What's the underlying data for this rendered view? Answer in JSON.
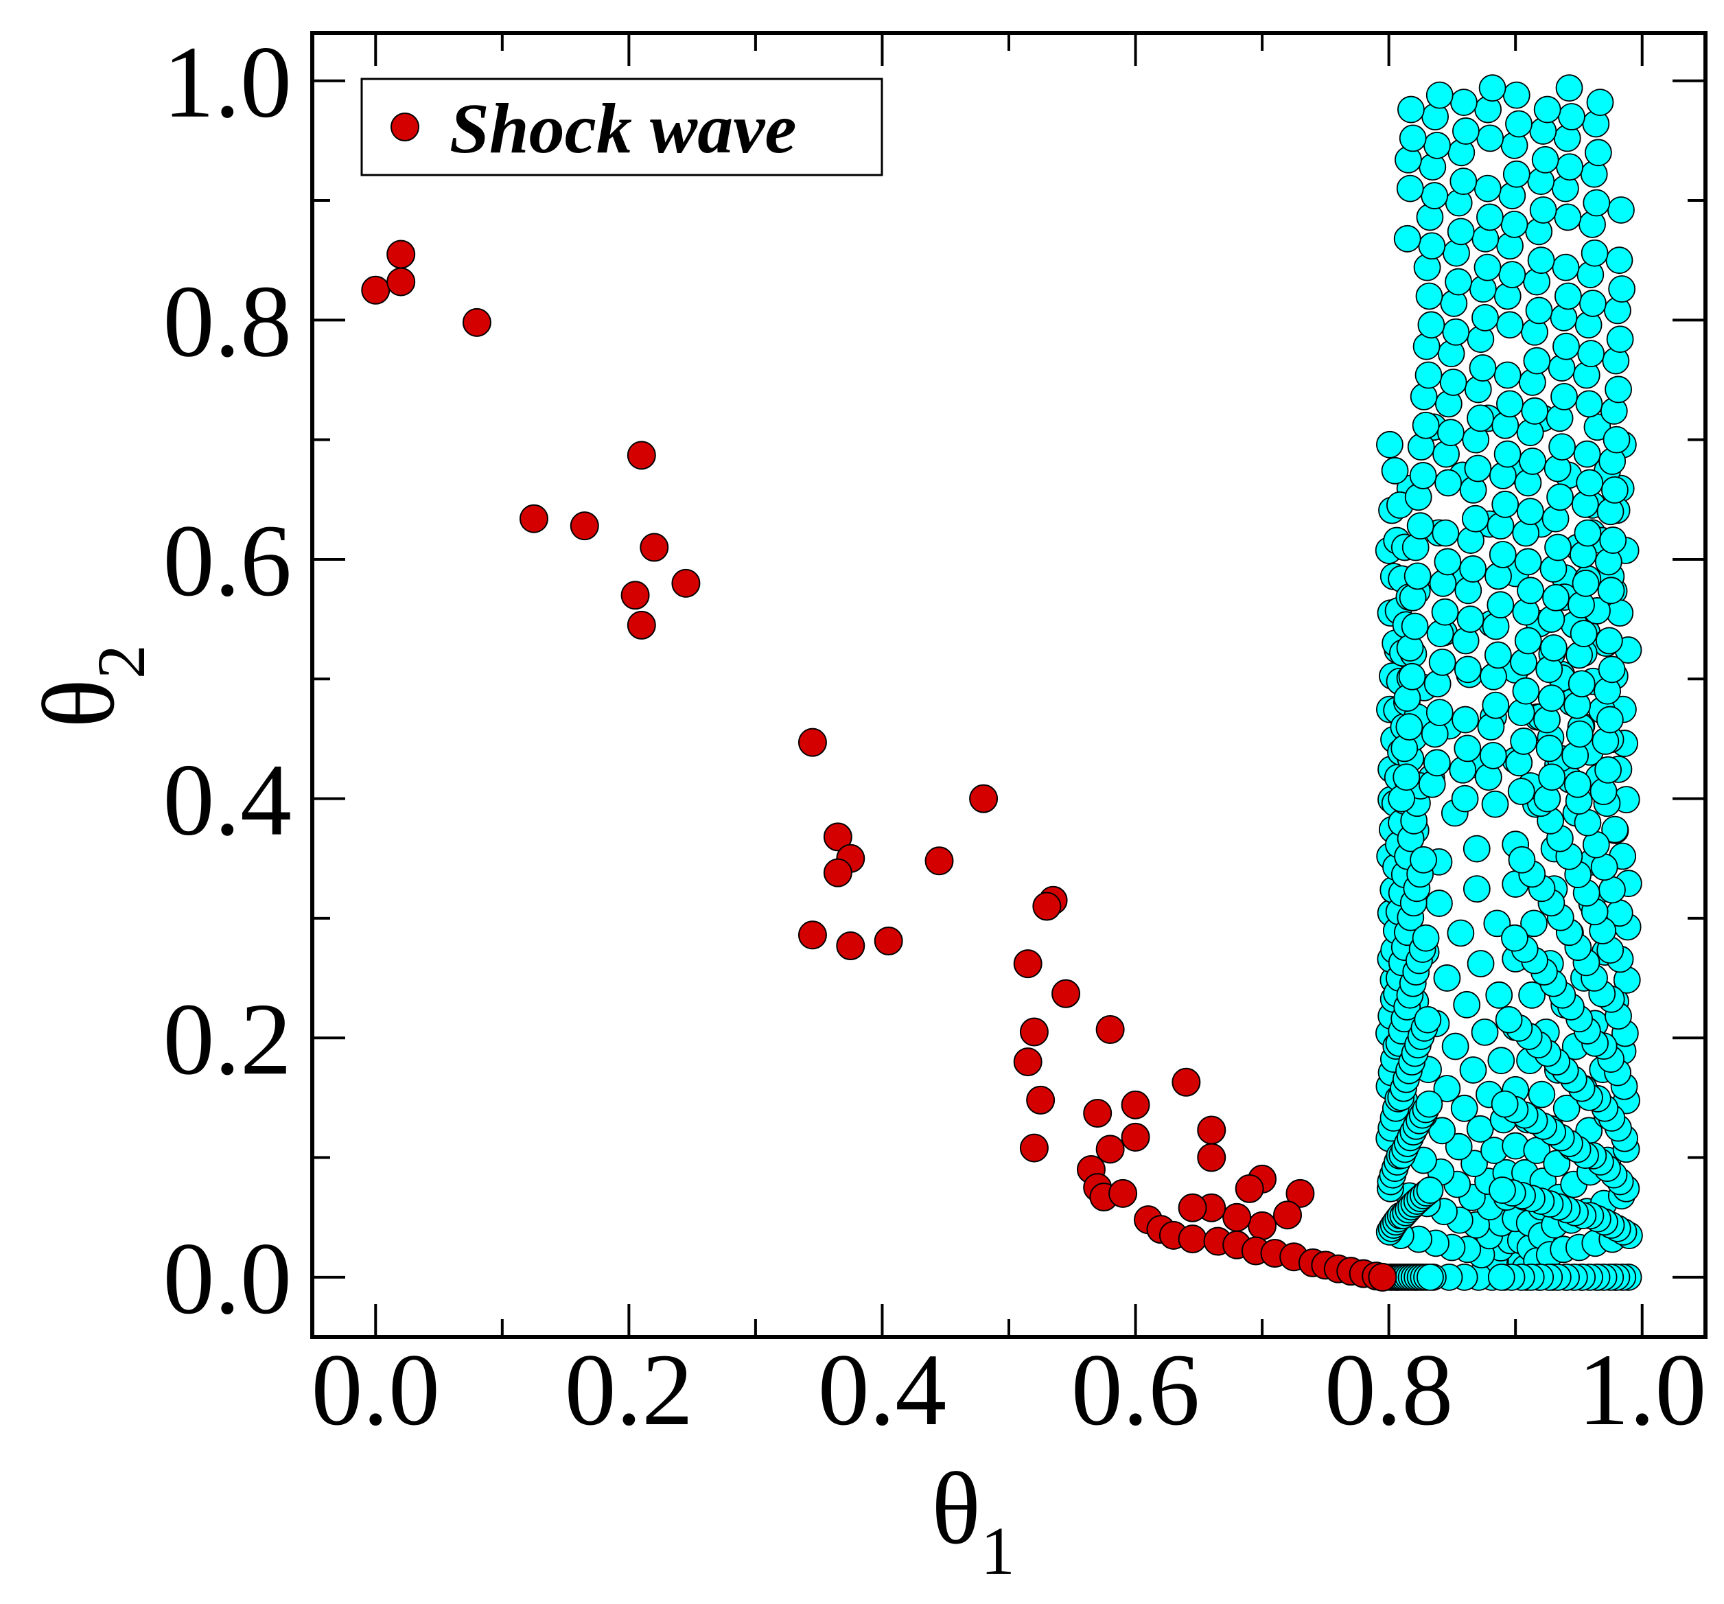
{
  "chart_data": {
    "type": "scatter",
    "xlabel": {
      "symbol": "θ",
      "subscript": "1"
    },
    "ylabel": {
      "symbol": "θ",
      "subscript": "2"
    },
    "xlim": [
      -0.05,
      1.05
    ],
    "ylim": [
      -0.05,
      1.04
    ],
    "xticks": [
      "0.0",
      "0.2",
      "0.4",
      "0.6",
      "0.8",
      "1.0"
    ],
    "yticks": [
      "0.0",
      "0.2",
      "0.4",
      "0.6",
      "0.8",
      "1.0"
    ],
    "legend": {
      "placement": "top-left",
      "entries": [
        "Shock wave"
      ]
    },
    "grid": false,
    "series": [
      {
        "name": "Shock wave",
        "color": "#d40000",
        "points": [
          [
            0.0,
            0.825
          ],
          [
            0.02,
            0.855
          ],
          [
            0.02,
            0.832
          ],
          [
            0.08,
            0.798
          ],
          [
            0.125,
            0.634
          ],
          [
            0.165,
            0.628
          ],
          [
            0.21,
            0.687
          ],
          [
            0.22,
            0.61
          ],
          [
            0.205,
            0.57
          ],
          [
            0.21,
            0.545
          ],
          [
            0.245,
            0.58
          ],
          [
            0.345,
            0.447
          ],
          [
            0.365,
            0.368
          ],
          [
            0.375,
            0.35
          ],
          [
            0.365,
            0.338
          ],
          [
            0.345,
            0.286
          ],
          [
            0.375,
            0.277
          ],
          [
            0.405,
            0.281
          ],
          [
            0.445,
            0.348
          ],
          [
            0.48,
            0.4
          ],
          [
            0.535,
            0.315
          ],
          [
            0.53,
            0.31
          ],
          [
            0.545,
            0.237
          ],
          [
            0.515,
            0.262
          ],
          [
            0.52,
            0.205
          ],
          [
            0.58,
            0.207
          ],
          [
            0.515,
            0.18
          ],
          [
            0.525,
            0.148
          ],
          [
            0.52,
            0.108
          ],
          [
            0.57,
            0.137
          ],
          [
            0.6,
            0.144
          ],
          [
            0.6,
            0.117
          ],
          [
            0.58,
            0.107
          ],
          [
            0.565,
            0.09
          ],
          [
            0.57,
            0.075
          ],
          [
            0.575,
            0.067
          ],
          [
            0.59,
            0.07
          ],
          [
            0.64,
            0.163
          ],
          [
            0.66,
            0.123
          ],
          [
            0.66,
            0.1
          ],
          [
            0.7,
            0.082
          ],
          [
            0.69,
            0.074
          ],
          [
            0.73,
            0.07
          ],
          [
            0.72,
            0.052
          ],
          [
            0.7,
            0.043
          ],
          [
            0.68,
            0.05
          ],
          [
            0.66,
            0.058
          ],
          [
            0.645,
            0.058
          ],
          [
            0.61,
            0.048
          ],
          [
            0.62,
            0.04
          ],
          [
            0.63,
            0.035
          ],
          [
            0.645,
            0.032
          ],
          [
            0.665,
            0.03
          ],
          [
            0.68,
            0.027
          ],
          [
            0.695,
            0.022
          ],
          [
            0.71,
            0.02
          ],
          [
            0.725,
            0.017
          ],
          [
            0.74,
            0.012
          ],
          [
            0.75,
            0.01
          ],
          [
            0.76,
            0.007
          ],
          [
            0.77,
            0.005
          ],
          [
            0.78,
            0.003
          ],
          [
            0.79,
            0.001
          ],
          [
            0.795,
            0.0
          ]
        ]
      },
      {
        "name": "",
        "color": "#00ffff",
        "points": []
      }
    ]
  }
}
